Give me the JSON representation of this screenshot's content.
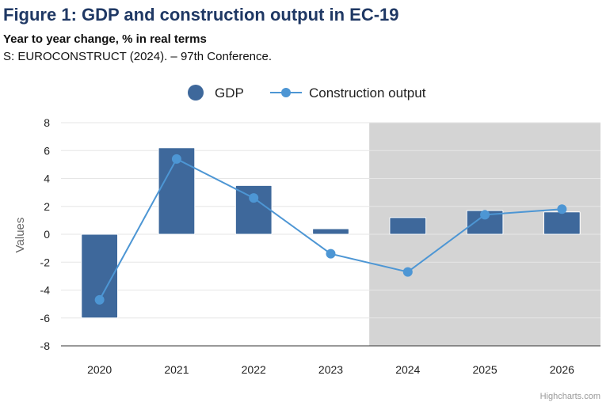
{
  "title": "Figure 1: GDP and construction output in EC-19",
  "subtitle": "Year to year change, % in real terms",
  "source": "S: EUROCONSTRUCT (2024). – 97th Conference.",
  "credits": "Highcharts.com",
  "colors": {
    "gdp": "#3e689b",
    "construction": "#4d96d4",
    "forecast_band": "#d4d4d4",
    "title": "#1f3864"
  },
  "chart_data": {
    "type": "bar",
    "categories": [
      "2020",
      "2021",
      "2022",
      "2023",
      "2024",
      "2025",
      "2026"
    ],
    "series": [
      {
        "name": "GDP",
        "type": "bar",
        "values": [
          -6.0,
          6.2,
          3.5,
          0.4,
          1.2,
          1.7,
          1.6
        ]
      },
      {
        "name": "Construction output",
        "type": "line",
        "values": [
          -4.7,
          5.4,
          2.6,
          -1.4,
          -2.7,
          1.4,
          1.8
        ]
      }
    ],
    "shaded_categories": [
      "2024",
      "2025",
      "2026"
    ],
    "xlabel": "",
    "ylabel": "Values",
    "ylim": [
      -8,
      8
    ],
    "yticks": [
      -8,
      -6,
      -4,
      -2,
      0,
      2,
      4,
      6,
      8
    ],
    "grid": true,
    "legend_position": "top-center"
  }
}
